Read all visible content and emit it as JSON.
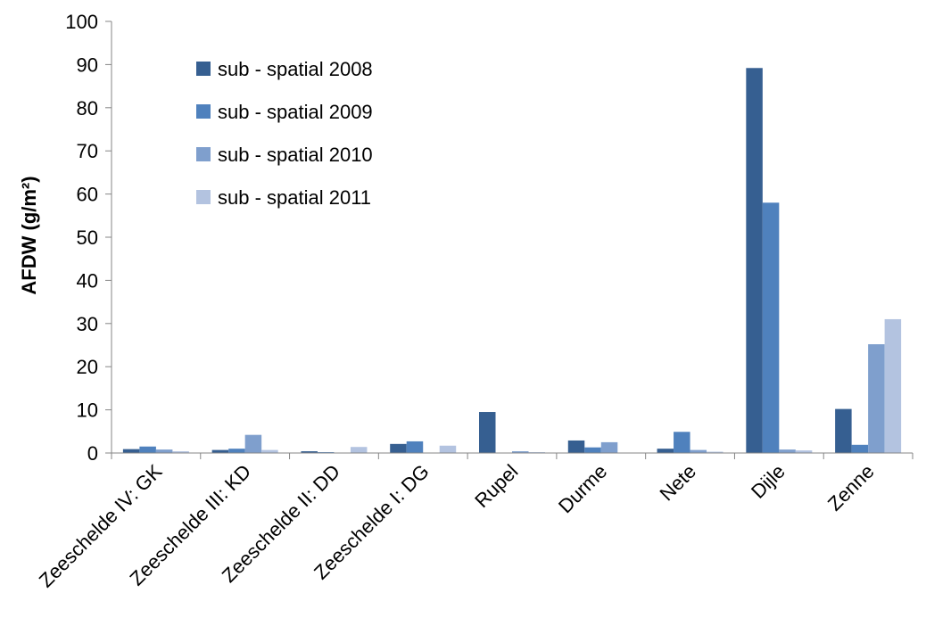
{
  "chart_data": {
    "type": "bar",
    "title": "",
    "xlabel": "",
    "ylabel": "AFDW (g/m²)",
    "ylim": [
      0,
      100
    ],
    "y_ticks": [
      0,
      10,
      20,
      30,
      40,
      50,
      60,
      70,
      80,
      90,
      100
    ],
    "grid": false,
    "legend_position": "top-left",
    "categories": [
      "Zeeschelde IV: GK",
      "Zeeschelde III: KD",
      "Zeeschelde II: DD",
      "Zeeschelde I: DG",
      "Rupel",
      "Durme",
      "Nete",
      "Dijle",
      "Zenne"
    ],
    "series": [
      {
        "name": "sub - spatial 2008",
        "color": "#365f91",
        "values": [
          0.9,
          0.7,
          0.4,
          2.1,
          9.5,
          2.9,
          1.0,
          89.2,
          10.2
        ]
      },
      {
        "name": "sub - spatial 2009",
        "color": "#4f81bd",
        "values": [
          1.5,
          1.0,
          0.2,
          2.7,
          0.0,
          1.3,
          4.9,
          58.0,
          1.9
        ]
      },
      {
        "name": "sub - spatial 2010",
        "color": "#7f9fcd",
        "values": [
          0.8,
          4.2,
          0.0,
          0.0,
          0.4,
          2.5,
          0.7,
          0.8,
          25.2
        ]
      },
      {
        "name": "sub - spatial 2011",
        "color": "#b3c3e0",
        "values": [
          0.4,
          0.7,
          1.4,
          1.7,
          0.2,
          0.0,
          0.3,
          0.6,
          31.0
        ]
      }
    ]
  }
}
